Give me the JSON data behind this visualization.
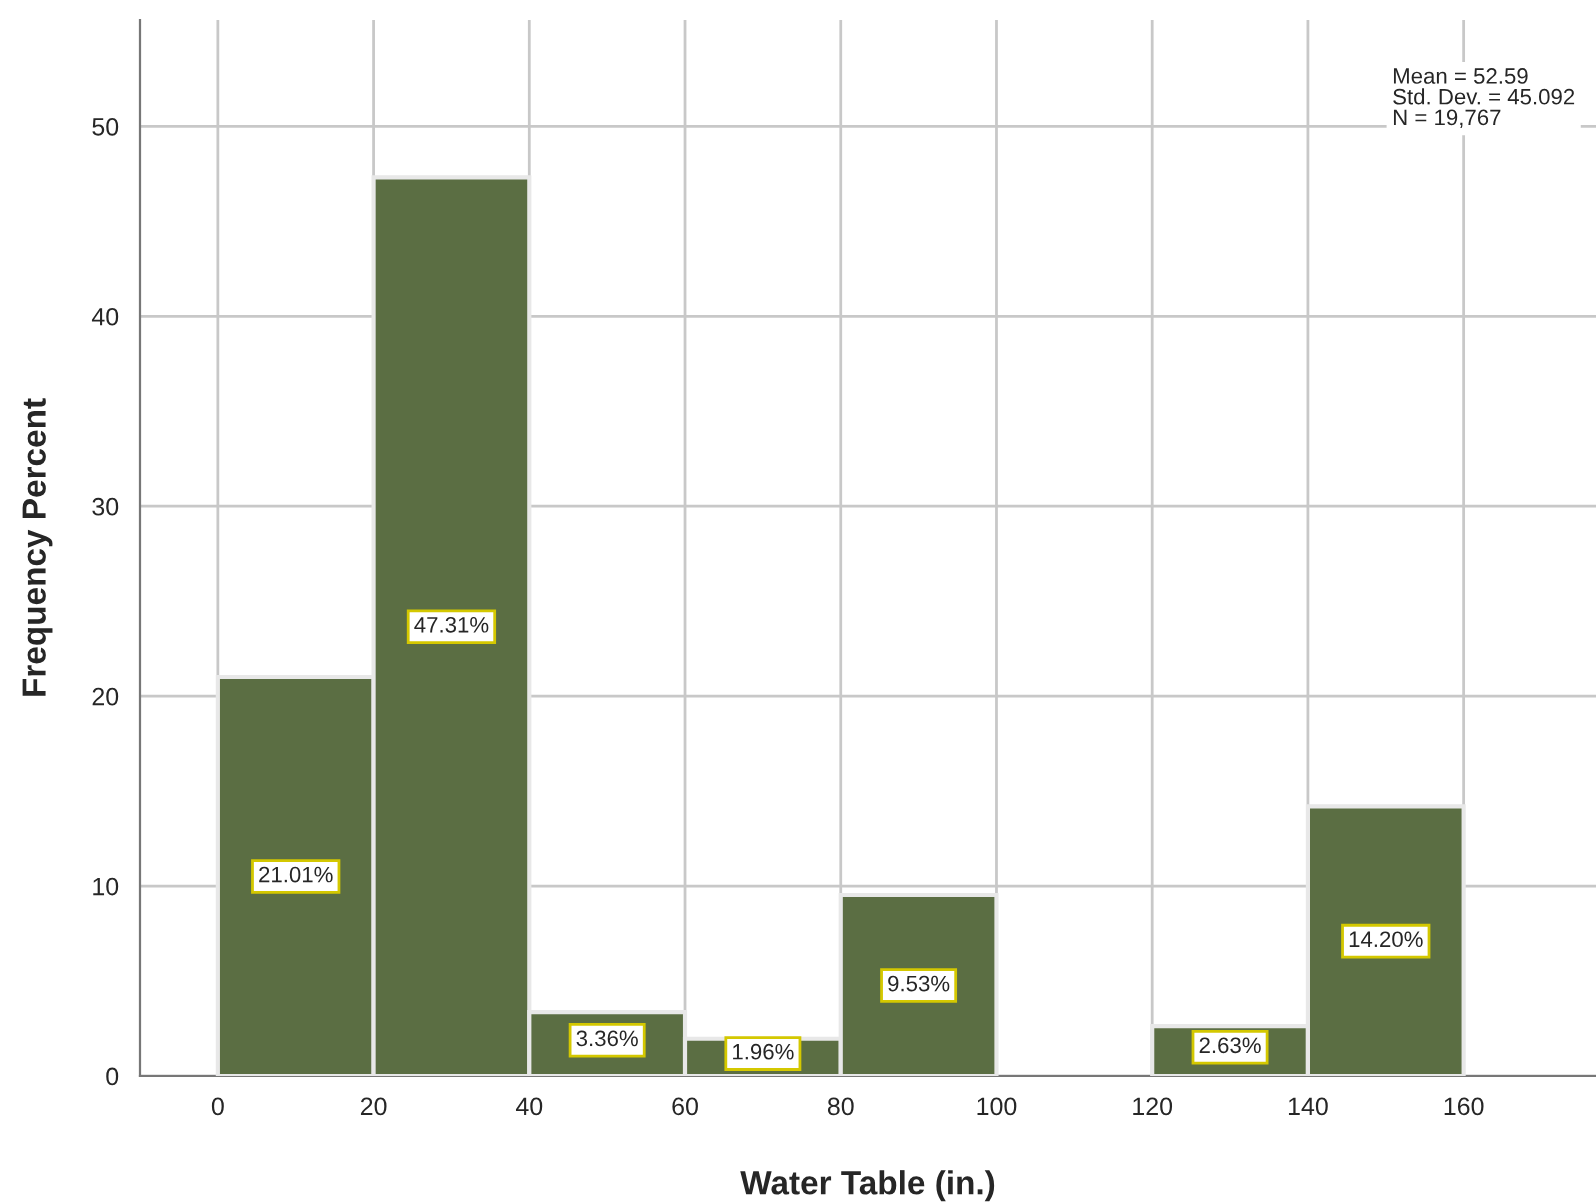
{
  "chart_data": {
    "type": "histogram",
    "xlabel": "Water Table (in.)",
    "ylabel": "Frequency Percent",
    "bins": [
      0,
      20,
      40,
      60,
      80,
      100,
      120,
      140,
      160
    ],
    "values": [
      21.01,
      47.31,
      3.36,
      1.96,
      9.53,
      0,
      2.63,
      14.2
    ],
    "value_labels": [
      "21.01%",
      "47.31%",
      "3.36%",
      "1.96%",
      "9.53%",
      null,
      "2.63%",
      "14.20%"
    ],
    "color": "#5b6e43",
    "xlim": [
      -10,
      177
    ],
    "xticks": [
      0,
      20,
      40,
      60,
      80,
      100,
      120,
      140,
      160
    ],
    "ylim": [
      0,
      55.6
    ],
    "yticks": [
      0,
      10,
      20,
      30,
      40,
      50
    ],
    "grid": true,
    "annotations": [
      "Mean = 52.59\nStd. Dev. = 45.092\nN = 19,767"
    ]
  }
}
